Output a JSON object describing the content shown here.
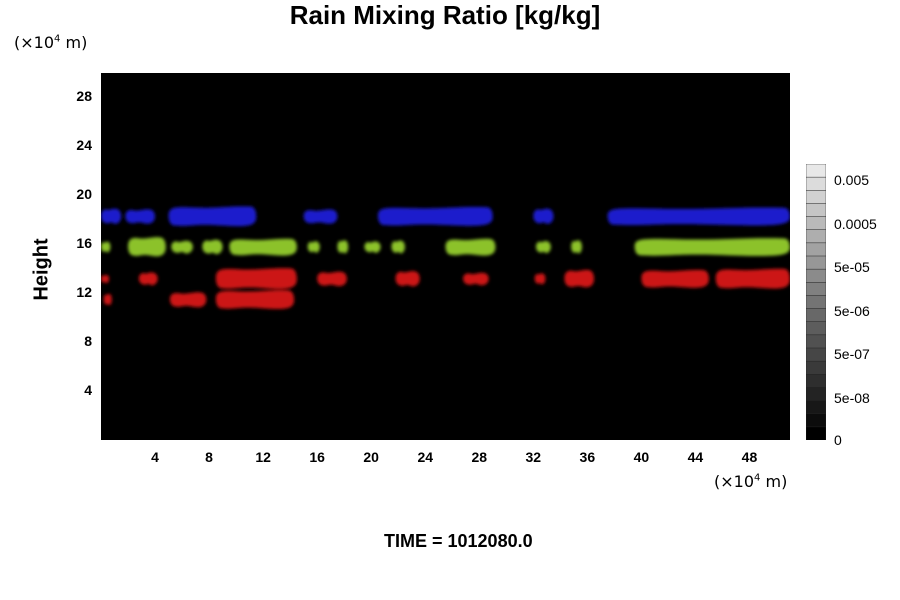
{
  "chart_data": {
    "type": "heatmap",
    "title": "Rain Mixing Ratio [kg/kg]",
    "ylabel": "Height",
    "x_unit": "m",
    "y_unit": "m",
    "unit_scale": "×10",
    "unit_exponent": "4",
    "xlim": [
      0,
      51
    ],
    "ylim": [
      0,
      30
    ],
    "x_ticks": [
      "4",
      "8",
      "12",
      "16",
      "20",
      "24",
      "28",
      "32",
      "36",
      "40",
      "44",
      "48"
    ],
    "y_ticks": [
      "4",
      "8",
      "12",
      "16",
      "20",
      "24",
      "28"
    ],
    "colorbar": {
      "labels": [
        "0.005",
        "0.0005",
        "5e-05",
        "5e-06",
        "5e-07",
        "5e-08",
        "0"
      ]
    },
    "bands": [
      {
        "color": "#1c1ccc",
        "y_center": 18.3,
        "segments": [
          [
            0,
            1.5
          ],
          [
            1.8,
            4
          ],
          [
            5,
            11.5
          ],
          [
            15,
            17.5
          ],
          [
            20.5,
            29
          ],
          [
            32,
            33.5
          ],
          [
            37.5,
            51
          ]
        ]
      },
      {
        "color": "#8cc22c",
        "y_center": 15.8,
        "segments": [
          [
            0,
            0.7
          ],
          [
            2,
            4.8
          ],
          [
            5.2,
            6.8
          ],
          [
            7.5,
            9
          ],
          [
            9.5,
            14.5
          ],
          [
            15.3,
            16.2
          ],
          [
            17.5,
            18.3
          ],
          [
            19.5,
            20.7
          ],
          [
            21.5,
            22.5
          ],
          [
            25.5,
            29.2
          ],
          [
            32.2,
            33.3
          ],
          [
            34.8,
            35.6
          ],
          [
            39.5,
            51
          ]
        ]
      },
      {
        "color": "#cc1414",
        "y_center": 13.2,
        "segments": [
          [
            0,
            0.6
          ],
          [
            2.8,
            4.2
          ],
          [
            8.5,
            14.5
          ],
          [
            16,
            18.2
          ],
          [
            21.8,
            23.6
          ],
          [
            26.8,
            28.7
          ],
          [
            32.1,
            32.9
          ],
          [
            34.3,
            36.5
          ],
          [
            40,
            45
          ],
          [
            45.5,
            51
          ]
        ]
      },
      {
        "color": "#cc1414",
        "y_center": 11.5,
        "segments": [
          [
            0.2,
            0.8
          ],
          [
            5.1,
            7.8
          ],
          [
            8.5,
            14.3
          ]
        ]
      }
    ],
    "time": "TIME = 1012080.0"
  }
}
